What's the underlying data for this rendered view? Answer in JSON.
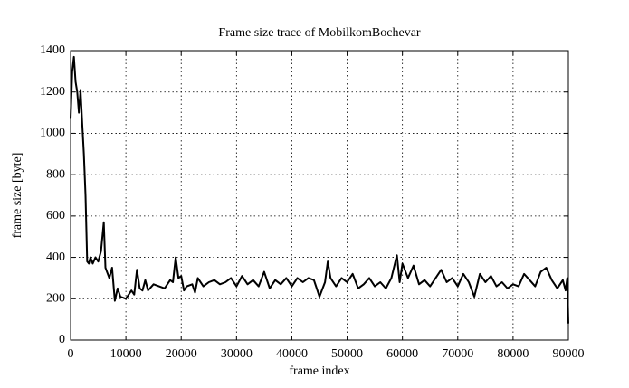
{
  "chart_data": {
    "type": "line",
    "title": "Frame size trace of MobilkomBochevar",
    "x_label": "frame index",
    "y_label": "frame size [byte]",
    "x": [
      0,
      300,
      600,
      900,
      1200,
      1500,
      1800,
      2100,
      2400,
      2700,
      3000,
      3300,
      3600,
      4000,
      4500,
      5000,
      5500,
      6000,
      6300,
      7000,
      7500,
      8000,
      8500,
      9000,
      10000,
      11000,
      11500,
      12000,
      12500,
      13000,
      13500,
      14000,
      15000,
      16000,
      17000,
      18000,
      18500,
      19000,
      19500,
      20000,
      20500,
      21000,
      22000,
      22500,
      23000,
      24000,
      25000,
      26000,
      27000,
      28000,
      29000,
      30000,
      31000,
      32000,
      33000,
      34000,
      35000,
      36000,
      37000,
      38000,
      39000,
      40000,
      41000,
      42000,
      43000,
      44000,
      45000,
      46000,
      46500,
      47000,
      48000,
      49000,
      50000,
      51000,
      52000,
      53000,
      54000,
      55000,
      56000,
      57000,
      58000,
      59000,
      59500,
      60000,
      61000,
      62000,
      63000,
      64000,
      65000,
      66000,
      67000,
      68000,
      69000,
      70000,
      71000,
      72000,
      73000,
      74000,
      75000,
      76000,
      77000,
      78000,
      79000,
      80000,
      81000,
      82000,
      83000,
      84000,
      85000,
      86000,
      87000,
      88000,
      89000,
      89500,
      89800,
      90000
    ],
    "series": [
      {
        "name": "frame size",
        "color": "#000000",
        "values": [
          1070,
          1300,
          1370,
          1250,
          1200,
          1100,
          1210,
          1050,
          900,
          700,
          380,
          370,
          400,
          370,
          400,
          380,
          430,
          570,
          350,
          300,
          350,
          190,
          250,
          210,
          200,
          240,
          220,
          340,
          250,
          240,
          290,
          240,
          270,
          260,
          250,
          290,
          280,
          400,
          300,
          310,
          240,
          260,
          270,
          230,
          300,
          260,
          280,
          290,
          270,
          280,
          300,
          260,
          310,
          270,
          290,
          260,
          330,
          250,
          290,
          270,
          300,
          260,
          300,
          280,
          300,
          290,
          210,
          280,
          380,
          300,
          260,
          300,
          280,
          320,
          250,
          270,
          300,
          260,
          280,
          250,
          300,
          410,
          280,
          370,
          300,
          360,
          270,
          290,
          260,
          300,
          340,
          280,
          300,
          260,
          320,
          280,
          210,
          320,
          280,
          310,
          260,
          280,
          250,
          270,
          260,
          320,
          290,
          260,
          330,
          350,
          290,
          250,
          290,
          240,
          300,
          80
        ]
      }
    ],
    "xlim": [
      0,
      90000
    ],
    "ylim": [
      0,
      1400
    ],
    "xticks": [
      0,
      10000,
      20000,
      30000,
      40000,
      50000,
      60000,
      70000,
      80000,
      90000
    ],
    "yticks": [
      0,
      200,
      400,
      600,
      800,
      1000,
      1200,
      1400
    ],
    "grid": true
  }
}
